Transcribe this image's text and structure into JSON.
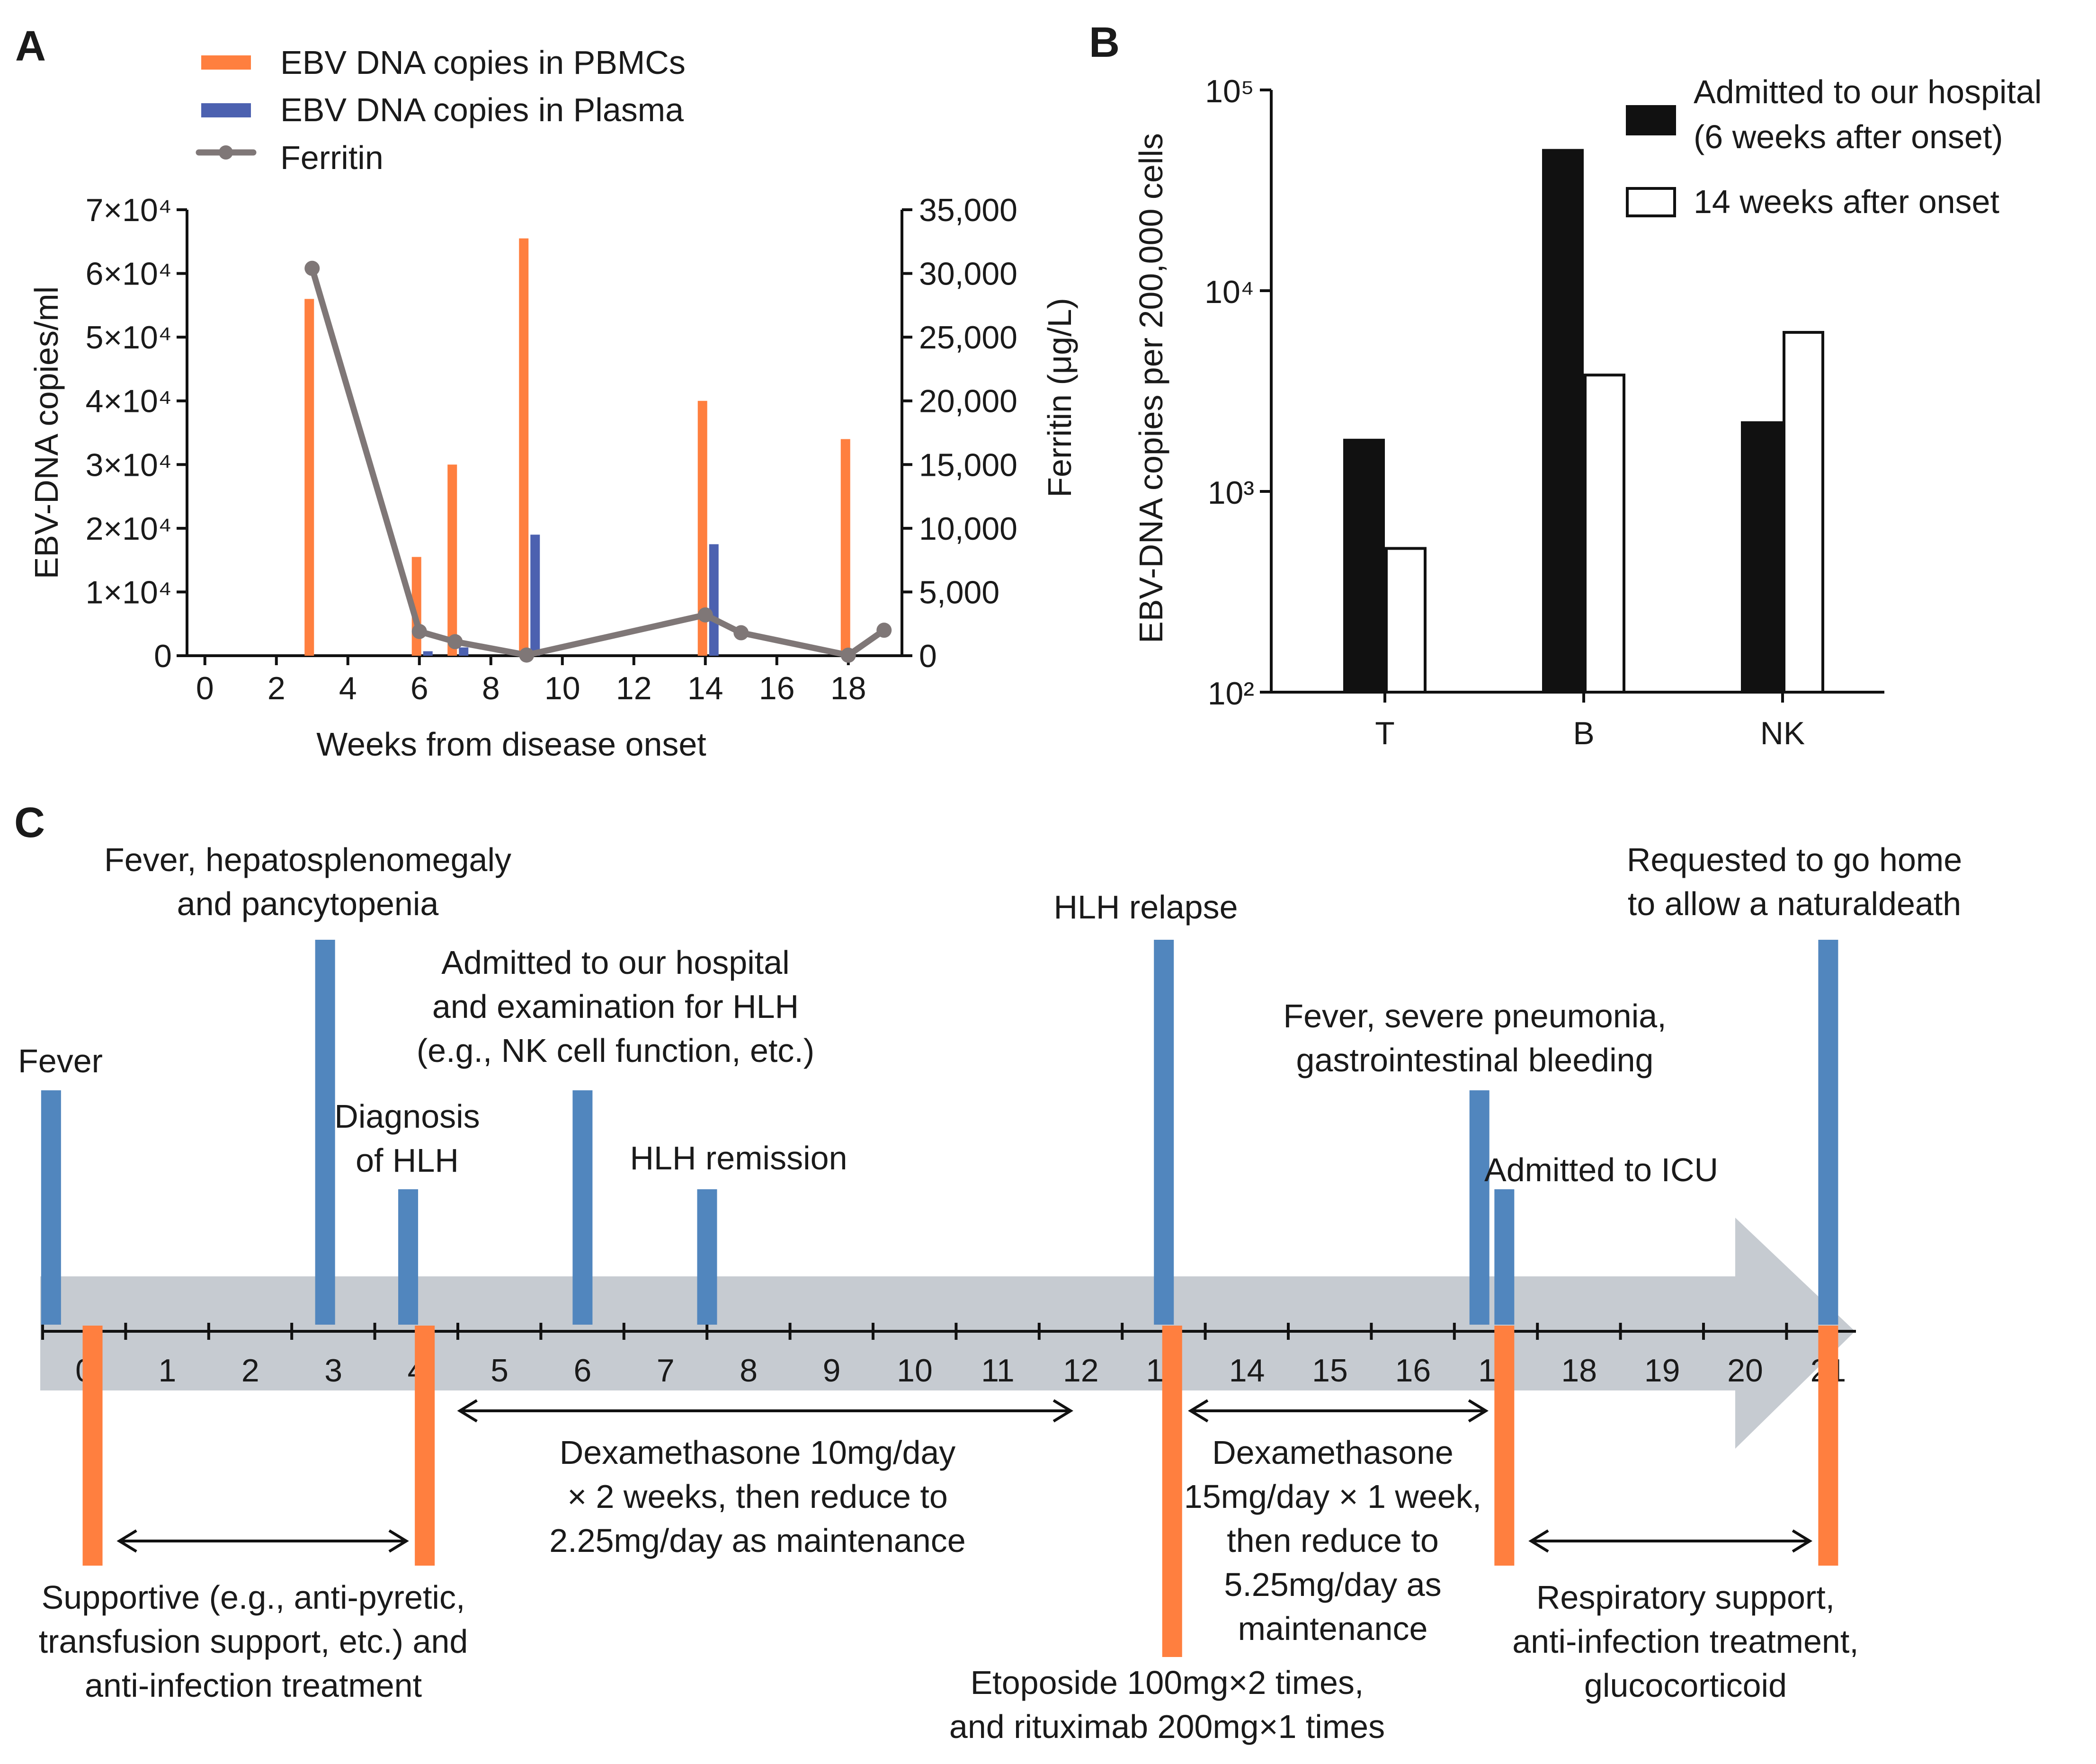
{
  "panels": {
    "a": "A",
    "b": "B",
    "c": "C"
  },
  "chart_data": [
    {
      "type": "bar",
      "panel": "A",
      "title": "",
      "xlabel": "Weeks from disease onset",
      "ylabel": "EBV-DNA copies/ml",
      "y2label": "Ferritin (μg/L)",
      "xlim": [
        -0.5,
        19.5
      ],
      "ylim": [
        0,
        70000
      ],
      "y2lim": [
        0,
        35000
      ],
      "x_ticks": [
        0,
        2,
        4,
        6,
        8,
        10,
        12,
        14,
        16,
        18
      ],
      "y_ticks": [
        {
          "value": 0,
          "label": "0"
        },
        {
          "value": 10000,
          "label": "1×10⁴"
        },
        {
          "value": 20000,
          "label": "2×10⁴"
        },
        {
          "value": 30000,
          "label": "3×10⁴"
        },
        {
          "value": 40000,
          "label": "4×10⁴"
        },
        {
          "value": 50000,
          "label": "5×10⁴"
        },
        {
          "value": 60000,
          "label": "6×10⁴"
        },
        {
          "value": 70000,
          "label": "7×10⁴"
        }
      ],
      "y2_ticks": [
        {
          "value": 0,
          "label": "0"
        },
        {
          "value": 5000,
          "label": "5,000"
        },
        {
          "value": 10000,
          "label": "10,000"
        },
        {
          "value": 15000,
          "label": "15,000"
        },
        {
          "value": 20000,
          "label": "20,000"
        },
        {
          "value": 25000,
          "label": "25,000"
        },
        {
          "value": 30000,
          "label": "30,000"
        },
        {
          "value": 35000,
          "label": "35,000"
        }
      ],
      "legend": [
        "EBV DNA copies in PBMCs",
        "EBV DNA copies in Plasma",
        "Ferritin"
      ],
      "legend_position": "top",
      "series": [
        {
          "name": "EBV DNA copies in PBMCs",
          "kind": "bar",
          "axis": "left",
          "color": "#ff7f3f",
          "points": [
            [
              3,
              56000
            ],
            [
              6,
              15500
            ],
            [
              7,
              30000
            ],
            [
              9,
              65500
            ],
            [
              14,
              40000
            ],
            [
              18,
              34000
            ]
          ]
        },
        {
          "name": "EBV DNA copies in Plasma",
          "kind": "bar",
          "axis": "left",
          "color": "#4c61b0",
          "points": [
            [
              6,
              700
            ],
            [
              7,
              1300
            ],
            [
              9,
              19000
            ],
            [
              14,
              17500
            ]
          ]
        },
        {
          "name": "Ferritin",
          "kind": "line",
          "axis": "right",
          "color": "#7f7777",
          "points": [
            [
              3,
              30400
            ],
            [
              6,
              1900
            ],
            [
              7,
              1100
            ],
            [
              9,
              50
            ],
            [
              14,
              3200
            ],
            [
              15,
              1800
            ],
            [
              18,
              40
            ],
            [
              19,
              2000
            ]
          ]
        }
      ]
    },
    {
      "type": "bar",
      "panel": "B",
      "title": "",
      "xlabel": "",
      "ylabel": "EBV-DNA copies per 200,000 cells",
      "yscale": "log",
      "ylim": [
        100,
        100000
      ],
      "y_ticks": [
        {
          "value": 100,
          "label": "10²"
        },
        {
          "value": 1000,
          "label": "10³"
        },
        {
          "value": 10000,
          "label": "10⁴"
        },
        {
          "value": 100000,
          "label": "10⁵"
        }
      ],
      "categories": [
        "T",
        "B",
        "NK"
      ],
      "legend_position": "top-right",
      "series": [
        {
          "name": "Admitted to our hospital (6 weeks after onset)",
          "legend_lines": [
            "Admitted to our hospital",
            "(6 weeks after onset)"
          ],
          "color": "#111111",
          "values": [
            1800,
            50000,
            2200
          ]
        },
        {
          "name": "14 weeks after onset",
          "legend_lines": [
            "14 weeks after onset"
          ],
          "color": "#ffffff",
          "values": [
            520,
            3800,
            6200
          ]
        }
      ]
    },
    {
      "type": "timeline",
      "panel": "C",
      "tick_labels": [
        "0",
        "1",
        "2",
        "3",
        "4",
        "5",
        "6",
        "7",
        "8",
        "9",
        "10",
        "11",
        "12",
        "13",
        "14",
        "15",
        "16",
        "17",
        "18",
        "19",
        "20",
        "21"
      ],
      "events": [
        {
          "week": -0.4,
          "level": "low",
          "lines": [
            "Fever"
          ]
        },
        {
          "week": 2.9,
          "level": "high",
          "lines": [
            "Fever, hepatosplenomegaly",
            "and pancytopenia"
          ]
        },
        {
          "week": 3.9,
          "level": "short",
          "lines": [
            "Diagnosis",
            "of HLH"
          ]
        },
        {
          "week": 6.0,
          "level": "low",
          "lines": [
            "Admitted to our hospital",
            "and examination for HLH",
            "(e.g., NK cell function, etc.)"
          ]
        },
        {
          "week": 7.5,
          "level": "short",
          "lines": [
            "HLH remission"
          ]
        },
        {
          "week": 13.0,
          "level": "high",
          "lines": [
            "HLH relapse"
          ]
        },
        {
          "week": 16.8,
          "level": "low",
          "lines": [
            "Fever, severe pneumonia,",
            "gastrointestinal bleeding"
          ]
        },
        {
          "week": 17.1,
          "level": "short",
          "lines": [
            "Admitted to ICU"
          ]
        },
        {
          "week": 21.0,
          "level": "high",
          "lines": [
            "Requested to go home",
            "to allow a naturaldeath"
          ]
        }
      ],
      "treatments": [
        {
          "week": 0.1,
          "length": "short"
        },
        {
          "week": 4.1,
          "length": "short"
        },
        {
          "week": 13.1,
          "length": "long"
        },
        {
          "week": 17.1,
          "length": "short"
        },
        {
          "week": 21.0,
          "length": "short"
        }
      ],
      "spans": [
        {
          "from": 0.4,
          "to": 3.9,
          "lines": [
            "Supportive (e.g., anti-pyretic,",
            "transfusion support, etc.) and",
            "anti-infection treatment"
          ]
        },
        {
          "from": 4.5,
          "to": 11.9,
          "lines": [
            "Dexamethasone 10mg/day",
            "× 2 weeks, then reduce to",
            "2.25mg/day as maintenance"
          ]
        },
        {
          "from": 13.3,
          "to": 16.9,
          "lines": [
            "Dexamethasone",
            "15mg/day × 1 week,",
            "then reduce to",
            "5.25mg/day as",
            "maintenance"
          ]
        },
        {
          "from": 17.4,
          "to": 20.8,
          "lines": [
            "Respiratory support,",
            "anti-infection treatment,",
            "glucocorticoid"
          ]
        }
      ],
      "notes": [
        {
          "week": 13.1,
          "lines": [
            "Etoposide 100mg×2 times,",
            "and rituximab 200mg×1 times"
          ]
        }
      ],
      "colors": {
        "event": "#5186be",
        "treatment": "#ff7f3f",
        "arrow": "#c6cbd1"
      }
    }
  ]
}
